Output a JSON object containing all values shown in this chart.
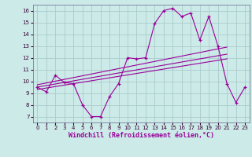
{
  "xlabel": "Windchill (Refroidissement éolien,°C)",
  "background_color": "#cceae8",
  "grid_color": "#aacccc",
  "line_color": "#990099",
  "xlim": [
    -0.5,
    23.5
  ],
  "ylim": [
    6.5,
    16.5
  ],
  "yticks": [
    7,
    8,
    9,
    10,
    11,
    12,
    13,
    14,
    15,
    16
  ],
  "xticks": [
    0,
    1,
    2,
    3,
    4,
    5,
    6,
    7,
    8,
    9,
    10,
    11,
    12,
    13,
    14,
    15,
    16,
    17,
    18,
    19,
    20,
    21,
    22,
    23
  ],
  "main_line_x": [
    0,
    1,
    2,
    3,
    4,
    5,
    6,
    7,
    8,
    9,
    10,
    11,
    12,
    13,
    14,
    15,
    16,
    17,
    18,
    19,
    20,
    21,
    22,
    23
  ],
  "main_line_y": [
    9.5,
    9.1,
    10.5,
    9.9,
    9.8,
    8.0,
    7.0,
    7.0,
    8.7,
    9.8,
    12.0,
    11.9,
    12.0,
    14.9,
    16.0,
    16.2,
    15.5,
    15.8,
    13.5,
    15.5,
    13.0,
    9.8,
    8.2,
    9.5
  ],
  "reg_line1_x": [
    0,
    21
  ],
  "reg_line1_y": [
    9.7,
    12.9
  ],
  "reg_line2_x": [
    0,
    21
  ],
  "reg_line2_y": [
    9.5,
    12.3
  ],
  "reg_line3_x": [
    0,
    21
  ],
  "reg_line3_y": [
    9.3,
    11.9
  ]
}
